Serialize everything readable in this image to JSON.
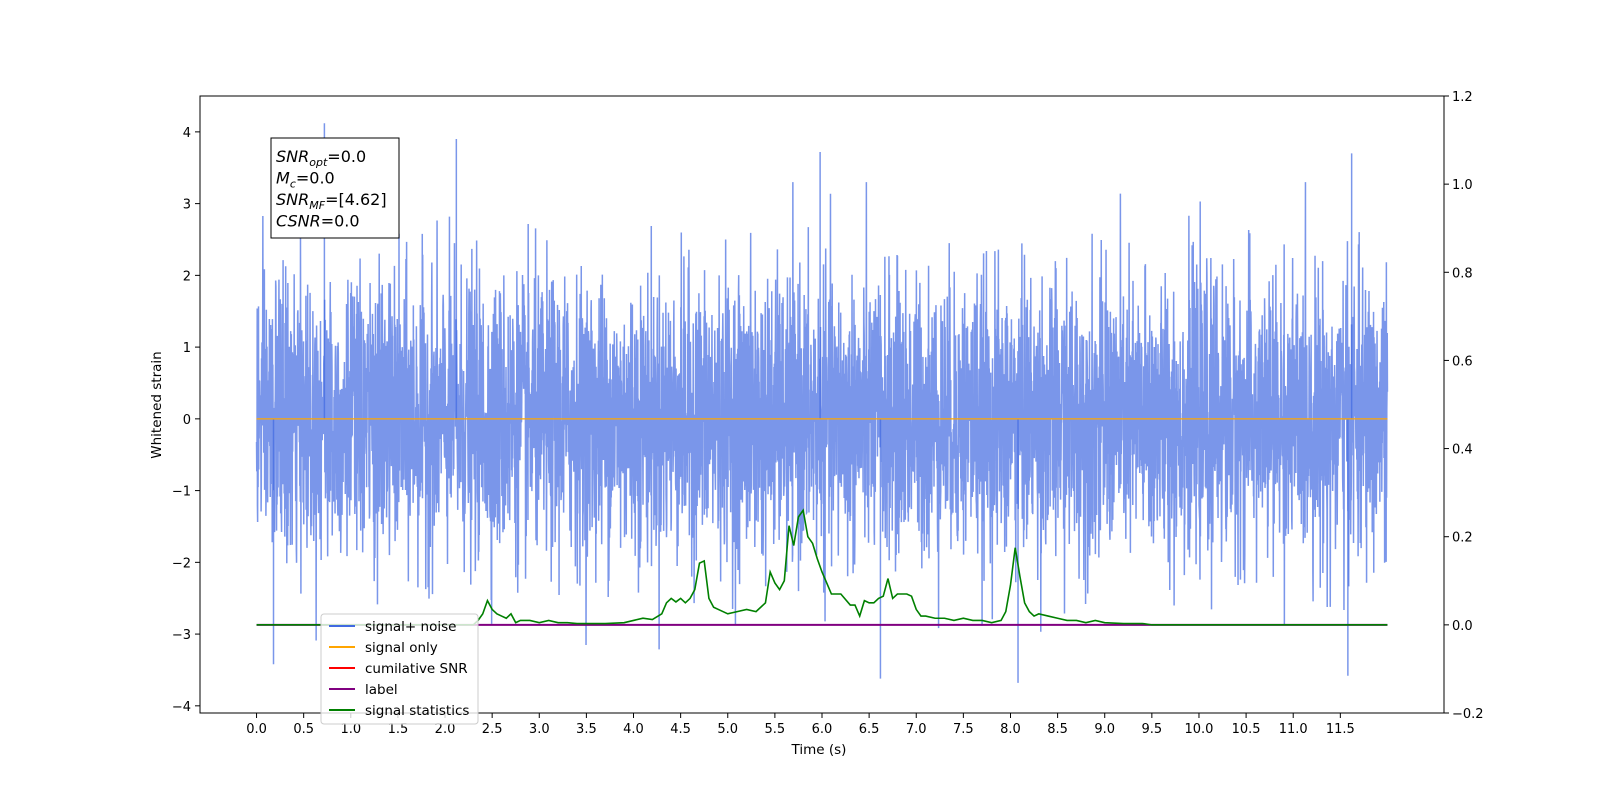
{
  "chart_data": {
    "type": "line",
    "xlabel": "Time (s)",
    "ylabel": "Whitened strain",
    "xlim": [
      -0.6,
      12.6
    ],
    "xticks": [
      0.0,
      0.5,
      1.0,
      1.5,
      2.0,
      2.5,
      3.0,
      3.5,
      4.0,
      4.5,
      5.0,
      5.5,
      6.0,
      6.5,
      7.0,
      7.5,
      8.0,
      8.5,
      9.0,
      9.5,
      10.0,
      10.5,
      11.0,
      11.5
    ],
    "xtick_labels": [
      "0.0",
      "0.5",
      "1.0",
      "1.5",
      "2.0",
      "2.5",
      "3.0",
      "3.5",
      "4.0",
      "4.5",
      "5.0",
      "5.5",
      "6.0",
      "6.5",
      "7.0",
      "7.5",
      "8.0",
      "8.5",
      "9.0",
      "9.5",
      "10.0",
      "10.5",
      "11.0",
      "11.5"
    ],
    "ylim_left": [
      -4.1,
      4.5
    ],
    "yticks_left": [
      -4,
      -3,
      -2,
      -1,
      0,
      1,
      2,
      3,
      4
    ],
    "ytick_labels_left": [
      "−4",
      "−3",
      "−2",
      "−1",
      "0",
      "1",
      "2",
      "3",
      "4"
    ],
    "ylim_right": [
      -0.2,
      1.2
    ],
    "yticks_right": [
      -0.2,
      0.0,
      0.2,
      0.4,
      0.6,
      0.8,
      1.0,
      1.2
    ],
    "ytick_labels_right": [
      "−0.2",
      "0.0",
      "0.2",
      "0.4",
      "0.6",
      "0.8",
      "1.0",
      "1.2"
    ],
    "grid": false,
    "legend_position": "lower-left",
    "annotation": {
      "lines": [
        {
          "var": "SNR",
          "sub": "opt",
          "value": "=0.0"
        },
        {
          "var": "M",
          "sub": "c",
          "value": "=0.0"
        },
        {
          "var": "SNR",
          "sub": "MF",
          "value": "=[4.62]"
        },
        {
          "var": "CSNR",
          "sub": "",
          "value": "=0.0"
        }
      ]
    },
    "legend": [
      {
        "label": "signal+ noise",
        "color": "#4169e1"
      },
      {
        "label": "signal only",
        "color": "#ffa500"
      },
      {
        "label": "cumilative SNR",
        "color": "#ff0000"
      },
      {
        "label": "label",
        "color": "#800080"
      },
      {
        "label": "signal statistics",
        "color": "#008000"
      }
    ],
    "series": [
      {
        "name": "signal+ noise",
        "axis": "left",
        "color": "#4169e1",
        "x_range": [
          0.0,
          12.0
        ],
        "std": 1.0,
        "notable_peaks": [
          {
            "x": 0.72,
            "y": 4.12
          },
          {
            "x": 2.12,
            "y": 3.9
          },
          {
            "x": 5.98,
            "y": 3.72
          },
          {
            "x": 11.62,
            "y": 3.7
          },
          {
            "x": 0.18,
            "y": -3.42
          },
          {
            "x": 6.62,
            "y": -3.62
          },
          {
            "x": 8.08,
            "y": -3.68
          },
          {
            "x": 11.58,
            "y": -3.58
          }
        ]
      },
      {
        "name": "signal only",
        "axis": "left",
        "color": "#ffa500",
        "x": [
          0.0,
          12.0
        ],
        "y": [
          0.0,
          0.0
        ]
      },
      {
        "name": "label",
        "axis": "right",
        "color": "#800080",
        "x": [
          0.0,
          12.0
        ],
        "y": [
          0.0,
          0.0
        ]
      },
      {
        "name": "signal statistics",
        "axis": "right",
        "color": "#008000",
        "x": [
          0.0,
          2.3,
          2.35,
          2.4,
          2.45,
          2.5,
          2.55,
          2.6,
          2.65,
          2.7,
          2.75,
          2.8,
          2.9,
          3.0,
          3.1,
          3.2,
          3.3,
          3.4,
          3.5,
          3.7,
          3.9,
          4.0,
          4.1,
          4.2,
          4.3,
          4.35,
          4.4,
          4.45,
          4.5,
          4.55,
          4.6,
          4.65,
          4.7,
          4.75,
          4.8,
          4.85,
          4.9,
          5.0,
          5.1,
          5.2,
          5.3,
          5.4,
          5.45,
          5.5,
          5.55,
          5.6,
          5.65,
          5.7,
          5.75,
          5.8,
          5.85,
          5.9,
          5.95,
          6.0,
          6.05,
          6.1,
          6.15,
          6.2,
          6.3,
          6.35,
          6.4,
          6.45,
          6.5,
          6.55,
          6.6,
          6.65,
          6.7,
          6.75,
          6.8,
          6.85,
          6.9,
          6.95,
          7.0,
          7.05,
          7.1,
          7.2,
          7.3,
          7.4,
          7.5,
          7.6,
          7.7,
          7.8,
          7.9,
          7.95,
          8.0,
          8.05,
          8.1,
          8.15,
          8.2,
          8.25,
          8.3,
          8.4,
          8.5,
          8.6,
          8.7,
          8.8,
          8.9,
          9.0,
          9.2,
          9.4,
          9.5,
          12.0
        ],
        "y": [
          0.0,
          0.0,
          0.01,
          0.025,
          0.055,
          0.035,
          0.025,
          0.02,
          0.015,
          0.025,
          0.005,
          0.01,
          0.01,
          0.005,
          0.01,
          0.005,
          0.005,
          0.003,
          0.003,
          0.003,
          0.005,
          0.01,
          0.015,
          0.012,
          0.025,
          0.05,
          0.06,
          0.052,
          0.06,
          0.05,
          0.06,
          0.08,
          0.14,
          0.145,
          0.06,
          0.04,
          0.035,
          0.025,
          0.03,
          0.035,
          0.03,
          0.05,
          0.12,
          0.095,
          0.08,
          0.1,
          0.225,
          0.18,
          0.245,
          0.26,
          0.2,
          0.185,
          0.15,
          0.12,
          0.095,
          0.07,
          0.07,
          0.07,
          0.045,
          0.045,
          0.02,
          0.055,
          0.05,
          0.05,
          0.06,
          0.065,
          0.105,
          0.06,
          0.07,
          0.07,
          0.07,
          0.065,
          0.035,
          0.02,
          0.02,
          0.015,
          0.015,
          0.01,
          0.015,
          0.01,
          0.01,
          0.005,
          0.01,
          0.03,
          0.09,
          0.175,
          0.11,
          0.05,
          0.03,
          0.02,
          0.025,
          0.02,
          0.015,
          0.01,
          0.01,
          0.005,
          0.01,
          0.005,
          0.003,
          0.003,
          0.0,
          0.0
        ]
      },
      {
        "name": "cumilative SNR",
        "axis": "right",
        "color": "#ff0000",
        "x": [],
        "y": []
      }
    ]
  }
}
